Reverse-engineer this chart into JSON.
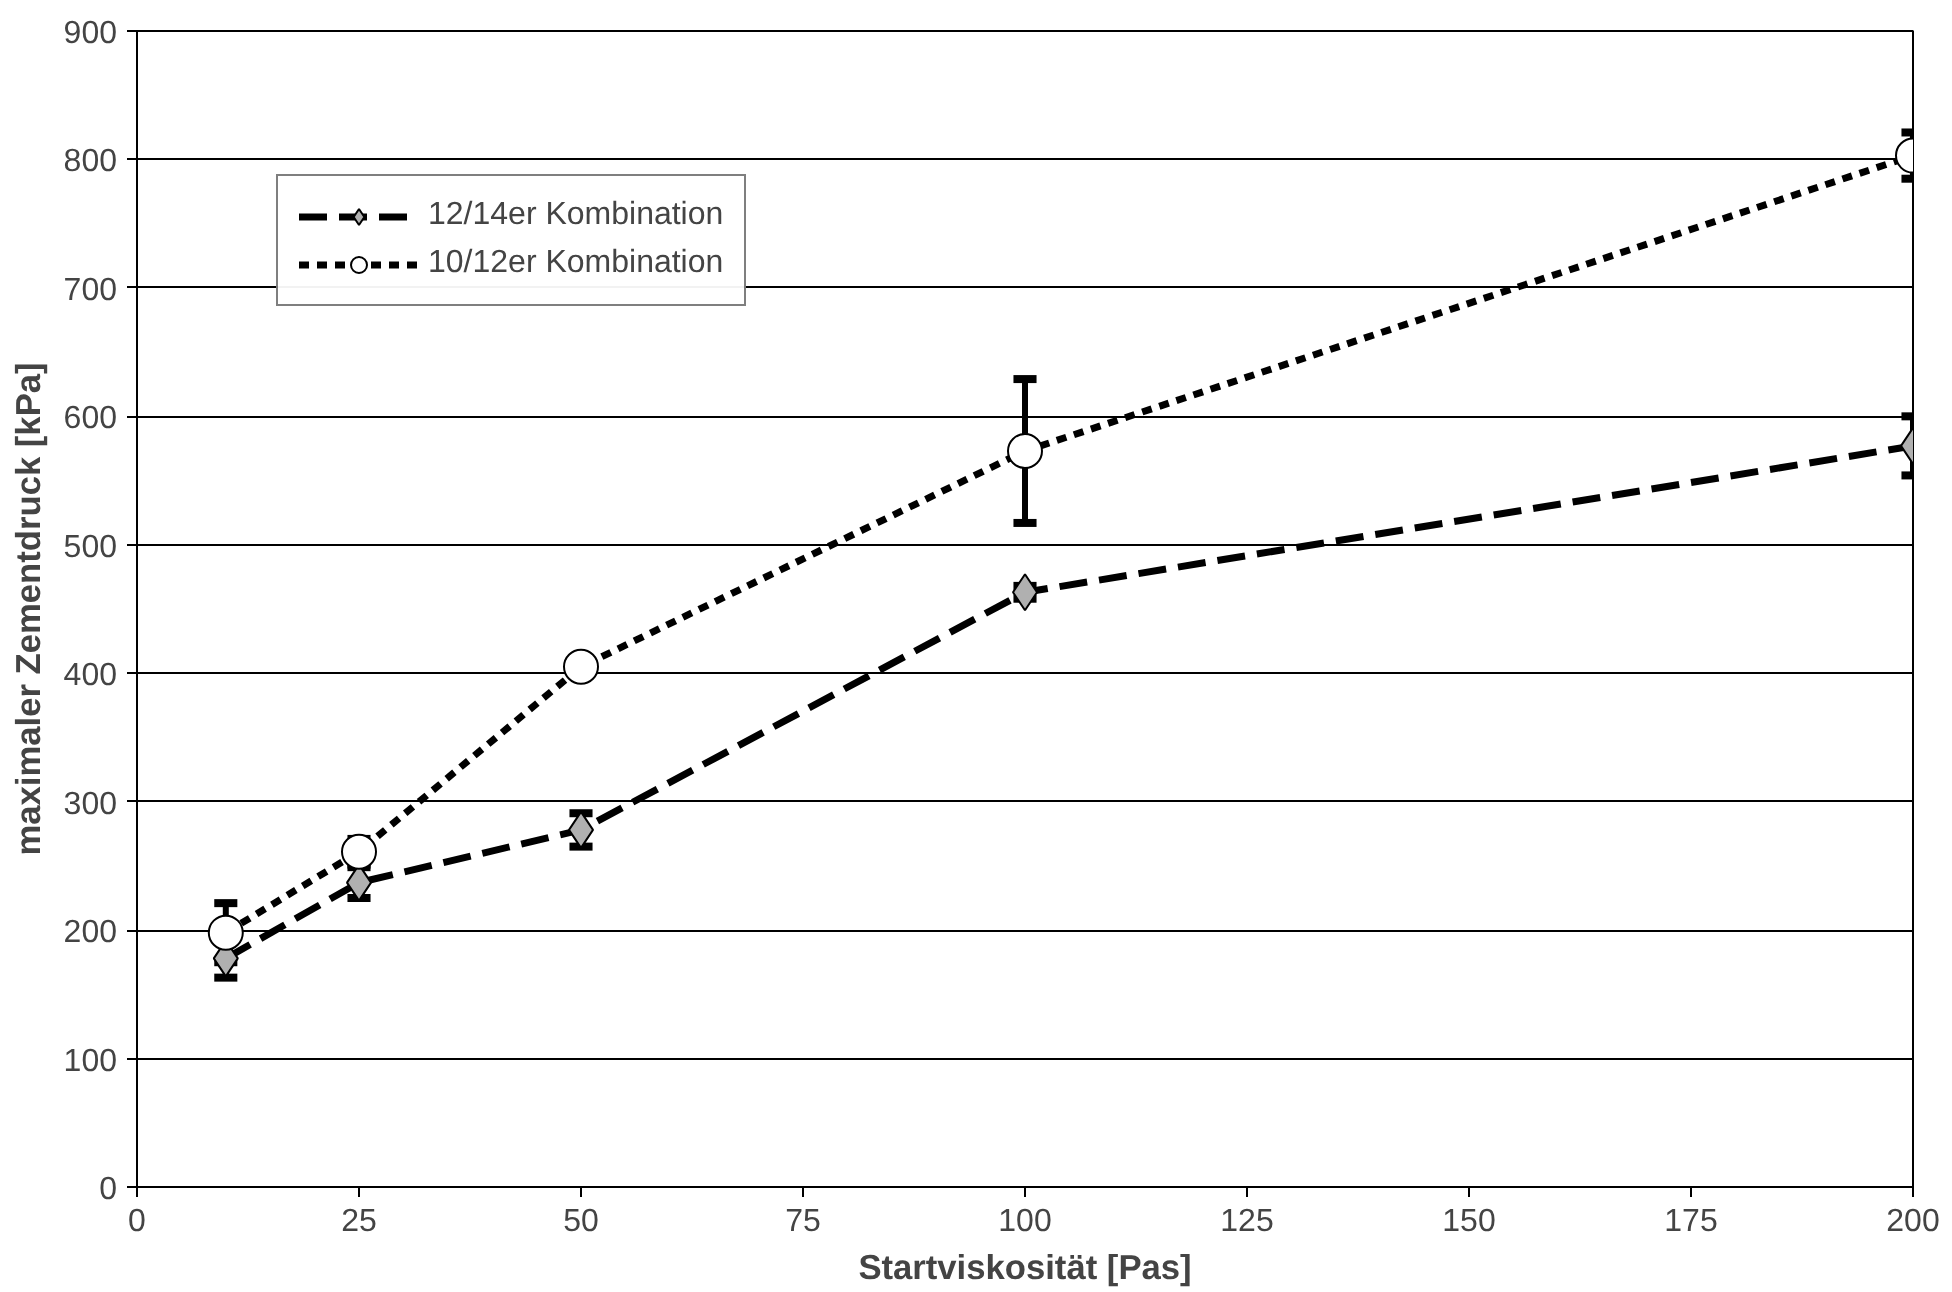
{
  "chart_data": {
    "type": "line",
    "xlabel": "Startviskosität [Pas]",
    "ylabel": "maximaler Zementdruck [kPa]",
    "x": [
      10,
      25,
      50,
      100,
      200
    ],
    "series": [
      {
        "name": "12/14er Kombination",
        "color": "#000000",
        "marker": "diamond",
        "line_style": "dashed",
        "values": [
          178,
          237,
          278,
          463,
          577
        ],
        "errors": [
          15,
          12,
          13,
          5,
          23
        ]
      },
      {
        "name": "10/12er Kombination",
        "color": "#000000",
        "marker": "circle",
        "line_style": "dotted",
        "values": [
          198,
          261,
          405,
          573,
          803
        ],
        "errors": [
          23,
          10,
          null,
          56,
          18
        ]
      }
    ],
    "xlim": [
      0,
      200
    ],
    "xticks": [
      0,
      25,
      50,
      75,
      100,
      125,
      150,
      175,
      200
    ],
    "ylim": [
      0,
      900
    ],
    "yticks": [
      0,
      100,
      200,
      300,
      400,
      500,
      600,
      700,
      800,
      900
    ],
    "grid": "y",
    "legend": "top left"
  }
}
